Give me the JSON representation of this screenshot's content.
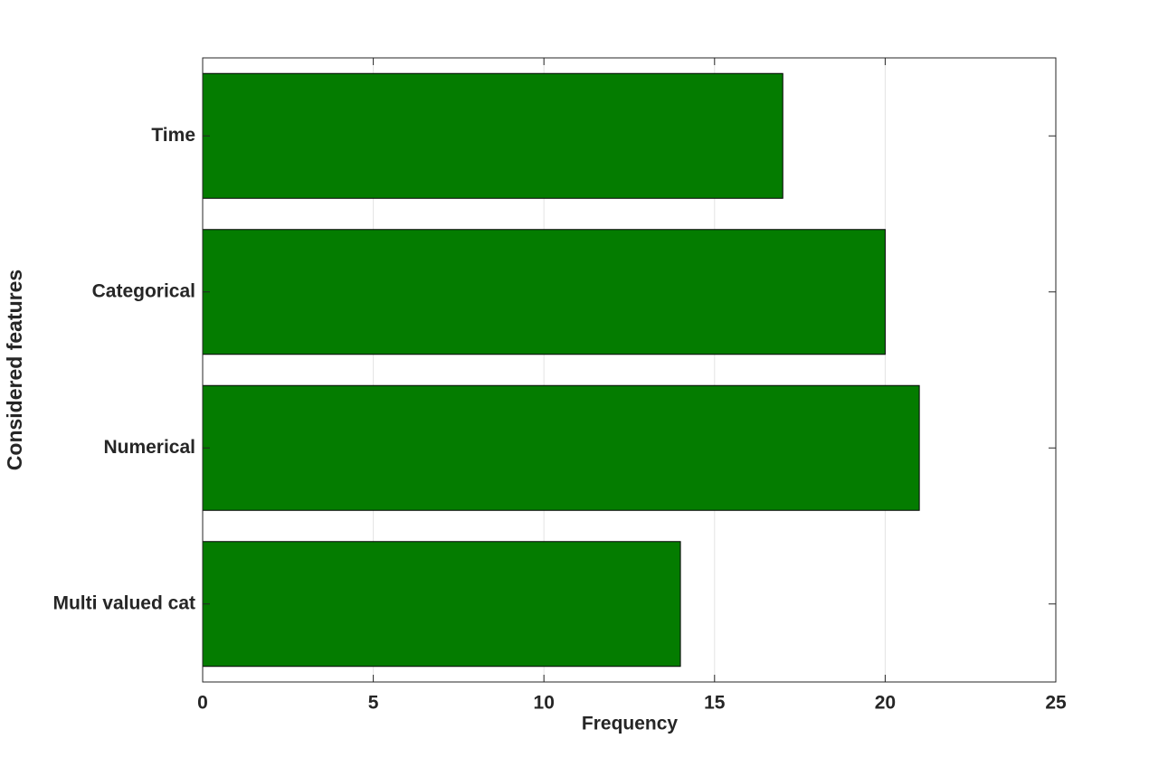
{
  "chart_data": {
    "type": "barh",
    "xlabel": "Frequency",
    "ylabel": "Considered features",
    "categories": [
      "Time",
      "Categorical",
      "Numerical",
      "Multi valued cat"
    ],
    "values": [
      17,
      20,
      21,
      14
    ],
    "color": "#047c00",
    "xlim": [
      0,
      25
    ],
    "xticks": [
      0,
      5,
      10,
      15,
      20,
      25
    ],
    "grid": true
  }
}
